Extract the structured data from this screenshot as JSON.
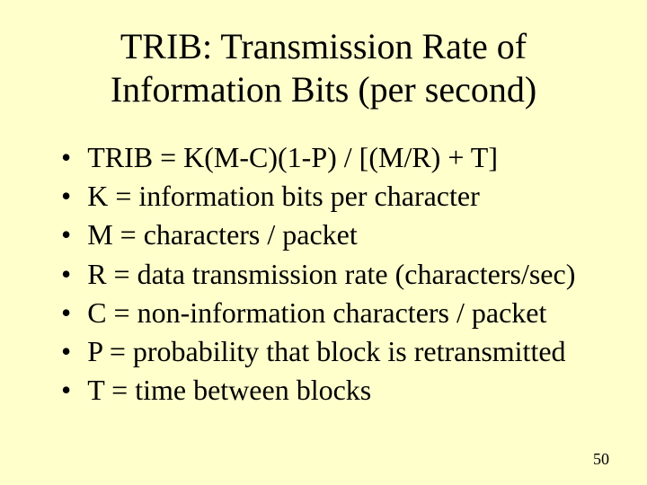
{
  "slide": {
    "title": "TRIB: Transmission Rate of Information Bits (per second)",
    "bullets": [
      "TRIB = K(M-C)(1-P) / [(M/R) + T]",
      "K = information bits per character",
      "M = characters / packet",
      "R = data transmission rate (characters/sec)",
      "C = non-information characters / packet",
      "P = probability that block is retransmitted",
      "T = time between blocks"
    ],
    "page_number": "50",
    "background_color": "#ffffcc",
    "text_color": "#000000",
    "title_fontsize": 40,
    "bullet_fontsize": 32,
    "pagenum_fontsize": 18,
    "font_family": "Times New Roman"
  }
}
